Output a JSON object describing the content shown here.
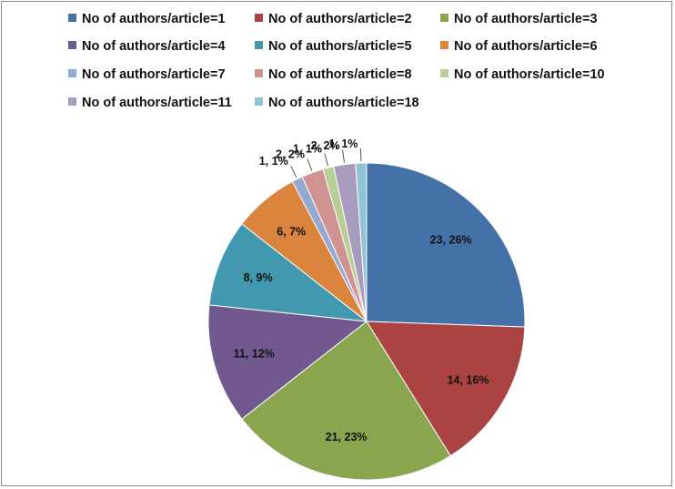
{
  "chart_data": {
    "type": "pie",
    "title": "",
    "legend_position": "top",
    "slices": [
      {
        "name": "No of authors/article=1",
        "value": 23,
        "percent": "26%",
        "label": "23, 26%",
        "color": "#4472a8"
      },
      {
        "name": "No of authors/article=2",
        "value": 14,
        "percent": "16%",
        "label": "14, 16%",
        "color": "#aa4341"
      },
      {
        "name": "No of authors/article=3",
        "value": 21,
        "percent": "23%",
        "label": "21, 23%",
        "color": "#89a54e"
      },
      {
        "name": "No of authors/article=4",
        "value": 11,
        "percent": "12%",
        "label": "11, 12%",
        "color": "#71588f"
      },
      {
        "name": "No of authors/article=5",
        "value": 8,
        "percent": "9%",
        "label": "8, 9%",
        "color": "#4198af"
      },
      {
        "name": "No of authors/article=6",
        "value": 6,
        "percent": "7%",
        "label": "6, 7%",
        "color": "#db843d"
      },
      {
        "name": "No of authors/article=7",
        "value": 1,
        "percent": "1%",
        "label": "1, 1%",
        "color": "#93a9cf"
      },
      {
        "name": "No of authors/article=8",
        "value": 2,
        "percent": "2%",
        "label": "2, 2%",
        "color": "#d19392"
      },
      {
        "name": "No of authors/article=10",
        "value": 1,
        "percent": "1%",
        "label": "1, 1%",
        "color": "#b9cd96"
      },
      {
        "name": "No of authors/article=11",
        "value": 2,
        "percent": "2%",
        "label": "2, 2%",
        "color": "#a99bbd"
      },
      {
        "name": "No of authors/article=18",
        "value": 1,
        "percent": "1%",
        "label": "1, 1%",
        "color": "#91c3d5"
      }
    ]
  }
}
